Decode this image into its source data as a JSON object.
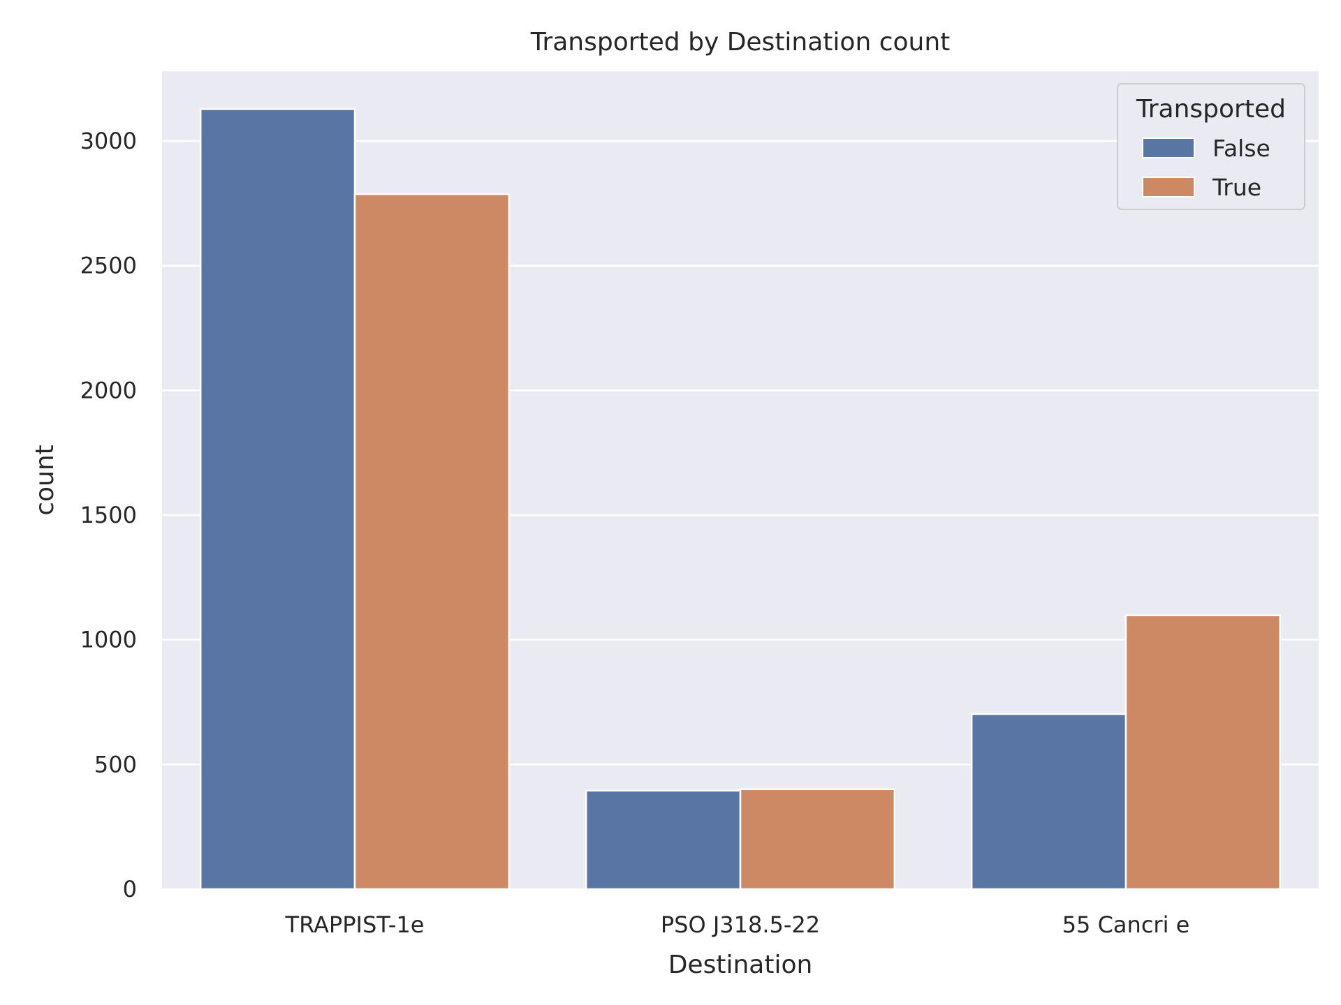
{
  "chart_data": {
    "type": "bar",
    "title": "Transported by Destination count",
    "xlabel": "Destination",
    "ylabel": "count",
    "categories": [
      "TRAPPIST-1e",
      "PSO J318.5-22",
      "55 Cancri e"
    ],
    "series": [
      {
        "name": "False",
        "values": [
          3128,
          395,
          702
        ],
        "color": "#5975a4"
      },
      {
        "name": "True",
        "values": [
          2787,
          401,
          1098
        ],
        "color": "#cc8963"
      }
    ],
    "ylim": [
      0,
      3280
    ],
    "yticks": [
      0,
      500,
      1000,
      1500,
      2000,
      2500,
      3000
    ],
    "grid": true,
    "legend": {
      "title": "Transported",
      "placement": "top-right"
    },
    "colors": {
      "background": "#eaeaf2",
      "grid": "#ffffff",
      "text": "#262626"
    }
  }
}
